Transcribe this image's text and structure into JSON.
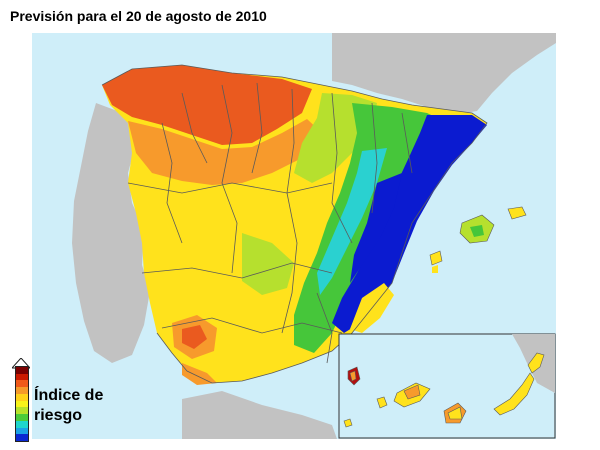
{
  "title": "Previsión para el 20 de agosto de 2010",
  "legend": {
    "line1": "Índice de",
    "line2": "riesgo",
    "colors": [
      "#7a0000",
      "#cc1a00",
      "#f05a1a",
      "#f59a2a",
      "#ffd11a",
      "#f8f41a",
      "#b7e32a",
      "#4bcc3a",
      "#1fd6cc",
      "#1aa2e6",
      "#0a28d2"
    ]
  },
  "colors": {
    "sea": "#cfeef9",
    "land_other": "#c2c2c2",
    "very_high": "#ea5a1f",
    "high": "#f79a2c",
    "moderate": "#ffe21c",
    "low": "#b6e02e",
    "very_low": "#46c63a",
    "minimal_cyan": "#2ad1d0",
    "minimal_blue": "#0b1bd0",
    "border": "#5a5a5a"
  }
}
